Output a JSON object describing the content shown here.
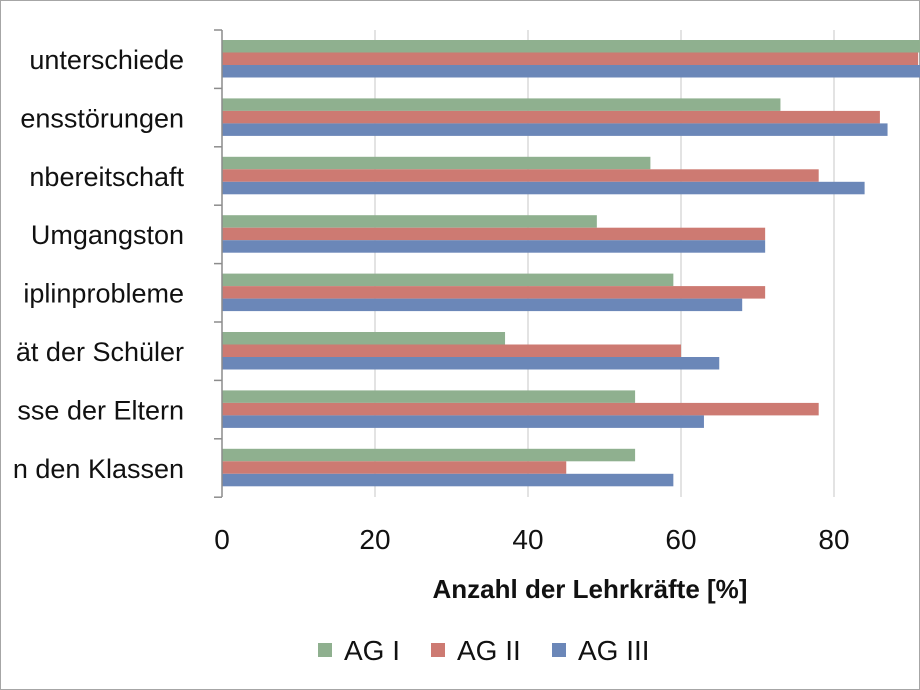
{
  "chart_data": {
    "type": "bar",
    "orientation": "horizontal",
    "xlabel": "Anzahl der Lehrkräfte [%]",
    "xlim": [
      0,
      90
    ],
    "x_ticks": [
      0,
      20,
      40,
      60,
      80
    ],
    "grid": true,
    "legend_position": "bottom",
    "categories": [
      "unterschiede",
      "ensstörungen",
      "nbereitschaft",
      "Umgangston",
      "iplinprobleme",
      "ät der Schüler",
      "sse der Eltern",
      "n den Klassen"
    ],
    "series": [
      {
        "name": "AG I",
        "color": "#8fb08f",
        "values": [
          92,
          73,
          56,
          49,
          59,
          37,
          54,
          54
        ]
      },
      {
        "name": "AG II",
        "color": "#cd7a72",
        "values": [
          91,
          86,
          78,
          71,
          71,
          60,
          78,
          45
        ]
      },
      {
        "name": "AG III",
        "color": "#6b87b8",
        "values": [
          92,
          87,
          84,
          71,
          68,
          65,
          63,
          59
        ]
      }
    ]
  }
}
